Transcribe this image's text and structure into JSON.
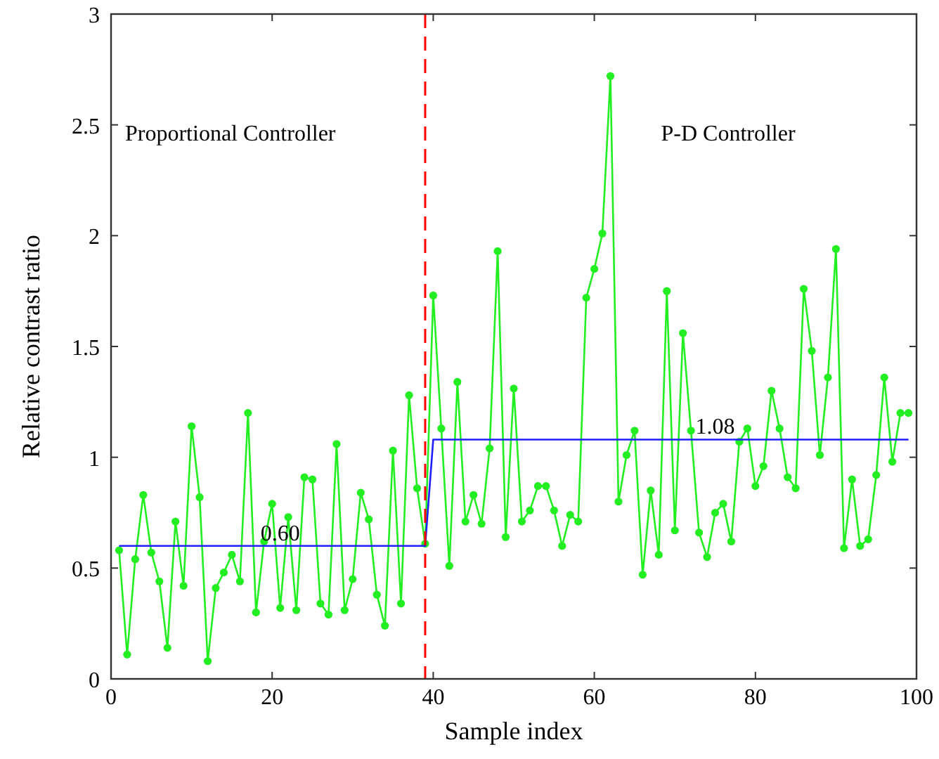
{
  "chart_data": {
    "type": "line",
    "xlabel": "Sample index",
    "ylabel": "Relative contrast ratio",
    "xlim": [
      0,
      100
    ],
    "ylim": [
      0,
      3
    ],
    "xticks": [
      0,
      20,
      40,
      60,
      80,
      100
    ],
    "yticks": [
      0,
      0.5,
      1,
      1.5,
      2,
      2.5,
      3
    ],
    "grid": false,
    "marker": "circle",
    "line_style": "solid",
    "series": [
      {
        "color": "#22ee22",
        "x": [
          1,
          2,
          3,
          4,
          5,
          6,
          7,
          8,
          9,
          10,
          11,
          12,
          13,
          14,
          15,
          16,
          17,
          18,
          19,
          20,
          21,
          22,
          23,
          24,
          25,
          26,
          27,
          28,
          29,
          30,
          31,
          32,
          33,
          34,
          35,
          36,
          37,
          38,
          39,
          40,
          41,
          42,
          43,
          44,
          45,
          46,
          47,
          48,
          49,
          50,
          51,
          52,
          53,
          54,
          55,
          56,
          57,
          58,
          59,
          60,
          61,
          62,
          63,
          64,
          65,
          66,
          67,
          68,
          69,
          70,
          71,
          72,
          73,
          74,
          75,
          76,
          77,
          78,
          79,
          80,
          81,
          82,
          83,
          84,
          85,
          86,
          87,
          88,
          89,
          90,
          91,
          92,
          93,
          94,
          95,
          96,
          97,
          98,
          99
        ],
        "values": [
          0.58,
          0.11,
          0.54,
          0.83,
          0.57,
          0.44,
          0.14,
          0.71,
          0.42,
          1.14,
          0.82,
          0.08,
          0.41,
          0.48,
          0.56,
          0.44,
          1.2,
          0.3,
          0.62,
          0.79,
          0.32,
          0.73,
          0.31,
          0.91,
          0.9,
          0.34,
          0.29,
          1.06,
          0.31,
          0.45,
          0.84,
          0.72,
          0.38,
          0.24,
          1.03,
          0.34,
          1.28,
          0.86,
          0.61,
          1.73,
          1.13,
          0.51,
          1.34,
          0.71,
          0.83,
          0.7,
          1.04,
          1.93,
          0.64,
          1.31,
          0.71,
          0.76,
          0.87,
          0.87,
          0.76,
          0.6,
          0.74,
          0.71,
          1.72,
          1.85,
          2.01,
          2.72,
          0.8,
          1.01,
          1.12,
          0.47,
          0.85,
          0.56,
          1.75,
          0.67,
          1.56,
          1.12,
          0.66,
          0.55,
          0.75,
          0.79,
          0.62,
          1.07,
          1.13,
          0.87,
          0.96,
          1.3,
          1.13,
          0.91,
          0.86,
          1.76,
          1.48,
          1.01,
          1.36,
          1.94,
          0.59,
          0.9,
          0.6,
          0.63,
          0.92,
          1.36,
          0.98,
          1.2,
          1.2
        ]
      },
      {
        "color": "#1f1fff",
        "marker": "none",
        "x": [
          1,
          39,
          40,
          99
        ],
        "values": [
          0.6,
          0.6,
          1.08,
          1.08
        ]
      }
    ],
    "ref_lines": [
      {
        "axis": "x",
        "value": 39,
        "color": "#ff0000",
        "line_style": "dashed"
      }
    ],
    "annotations": [
      "Proportional Controller",
      "P-D Controller",
      {
        "text": "0.60",
        "x": 21,
        "y": 0.6
      },
      {
        "text": "1.08",
        "x": 75,
        "y": 1.08
      }
    ]
  }
}
